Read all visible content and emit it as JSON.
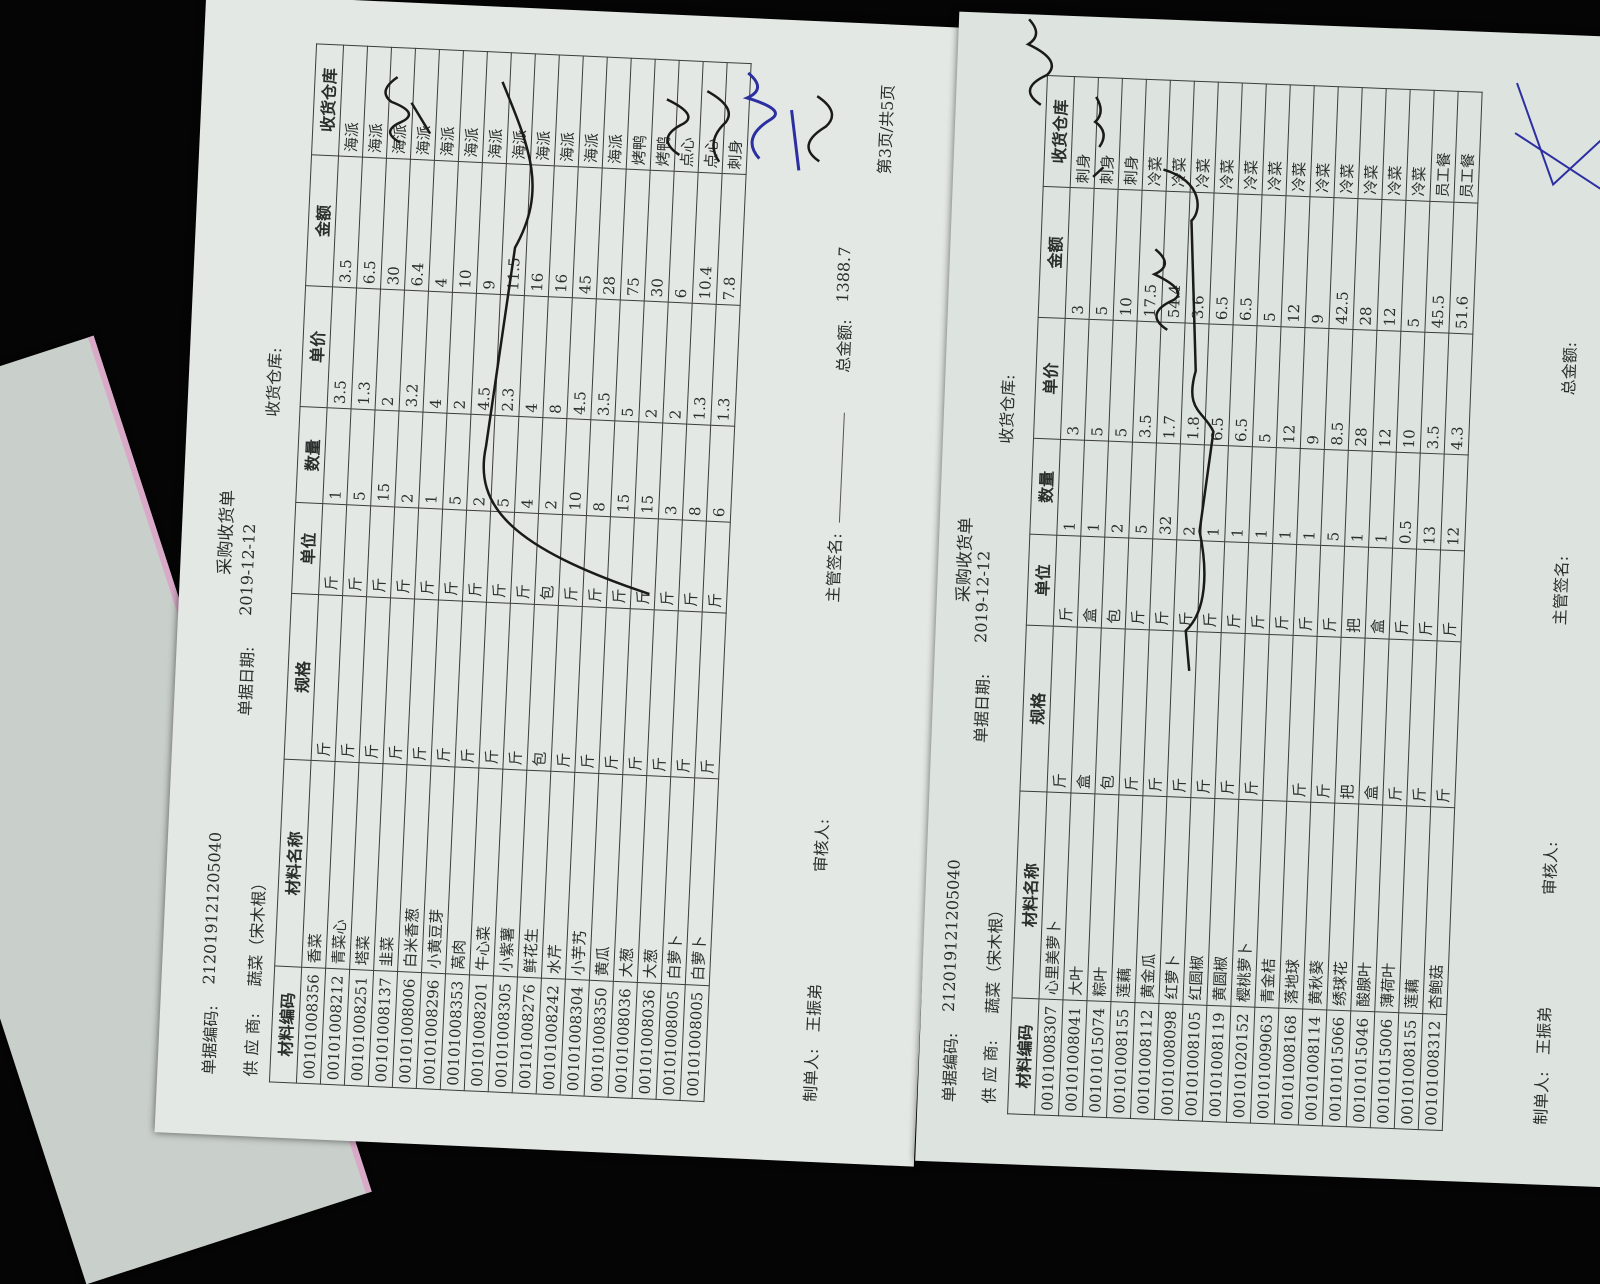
{
  "pages": [
    {
      "doc_code_label": "单据编码:",
      "doc_code": "212019121205040",
      "title": "采购收货单",
      "date_label": "单据日期:",
      "date": "2019-12-12",
      "warehouse_label": "收货仓库:",
      "supplier_label": "供 应 商:",
      "supplier": "蔬菜（宋木根）",
      "columns": [
        "材料编码",
        "材料名称",
        "规格",
        "单位",
        "数量",
        "单价",
        "金额",
        "收货仓库"
      ],
      "rows": [
        [
          "00101008356",
          "香菜",
          "斤",
          "斤",
          "1",
          "3.5",
          "3.5",
          "海派"
        ],
        [
          "00101008212",
          "青菜心",
          "斤",
          "斤",
          "5",
          "1.3",
          "6.5",
          "海派"
        ],
        [
          "00101008251",
          "塔菜",
          "斤",
          "斤",
          "15",
          "2",
          "30",
          "海派"
        ],
        [
          "00101008137",
          "韭菜",
          "斤",
          "斤",
          "2",
          "3.2",
          "6.4",
          "海派"
        ],
        [
          "00101008006",
          "白米香葱",
          "斤",
          "斤",
          "1",
          "4",
          "4",
          "海派"
        ],
        [
          "00101008296",
          "小黄豆芽",
          "斤",
          "斤",
          "5",
          "2",
          "10",
          "海派"
        ],
        [
          "00101008353",
          "莴肉",
          "斤",
          "斤",
          "2",
          "4.5",
          "9",
          "海派"
        ],
        [
          "00101008201",
          "牛心菜",
          "斤",
          "斤",
          "5",
          "2.3",
          "11.5",
          "海派"
        ],
        [
          "00101008305",
          "小紫薯",
          "斤",
          "斤",
          "4",
          "4",
          "16",
          "海派"
        ],
        [
          "00101008276",
          "鲜花生",
          "包",
          "包",
          "2",
          "8",
          "16",
          "海派"
        ],
        [
          "00101008242",
          "水芹",
          "斤",
          "斤",
          "10",
          "4.5",
          "45",
          "海派"
        ],
        [
          "00101008304",
          "小芋艿",
          "斤",
          "斤",
          "8",
          "3.5",
          "28",
          "海派"
        ],
        [
          "00101008350",
          "黄瓜",
          "斤",
          "斤",
          "15",
          "5",
          "75",
          "烤鸭"
        ],
        [
          "00101008036",
          "大葱",
          "斤",
          "斤",
          "15",
          "2",
          "30",
          "烤鸭"
        ],
        [
          "00101008036",
          "大葱",
          "斤",
          "斤",
          "3",
          "2",
          "6",
          "点心"
        ],
        [
          "00101008005",
          "白萝卜",
          "斤",
          "斤",
          "8",
          "1.3",
          "10.4",
          "点心"
        ],
        [
          "00101008005",
          "白萝卜",
          "斤",
          "斤",
          "6",
          "1.3",
          "7.8",
          "刺身"
        ]
      ],
      "maker_label": "制单人:",
      "maker": "王振弟",
      "reviewer_label": "审核人:",
      "supervisor_label": "主管签名:",
      "total_label": "总金额:",
      "total": "1388.7",
      "page_info": "第3页/共5页"
    },
    {
      "doc_code_label": "单据编码:",
      "doc_code": "212019121205040",
      "title": "采购收货单",
      "date_label": "单据日期:",
      "date": "2019-12-12",
      "warehouse_label": "收货仓库:",
      "supplier_label": "供 应 商:",
      "supplier": "蔬菜（宋木根）",
      "columns": [
        "材料编码",
        "材料名称",
        "规格",
        "单位",
        "数量",
        "单价",
        "金额",
        "收货仓库"
      ],
      "rows": [
        [
          "00101008307",
          "心里美萝卜",
          "斤",
          "斤",
          "1",
          "3",
          "3",
          "刺身"
        ],
        [
          "00101008041",
          "大叶",
          "盒",
          "盒",
          "1",
          "5",
          "5",
          "刺身"
        ],
        [
          "00101015074",
          "粽叶",
          "包",
          "包",
          "2",
          "5",
          "10",
          "刺身"
        ],
        [
          "00101008155",
          "莲藕",
          "斤",
          "斤",
          "5",
          "3.5",
          "17.5",
          "冷菜"
        ],
        [
          "00101008112",
          "黄金瓜",
          "斤",
          "斤",
          "32",
          "1.7",
          "54.4",
          "冷菜"
        ],
        [
          "00101008098",
          "红萝卜",
          "斤",
          "斤",
          "2",
          "1.8",
          "3.6",
          "冷菜"
        ],
        [
          "00101008105",
          "红圆椒",
          "斤",
          "斤",
          "1",
          "6.5",
          "6.5",
          "冷菜"
        ],
        [
          "00101008119",
          "黄圆椒",
          "斤",
          "斤",
          "1",
          "6.5",
          "6.5",
          "冷菜"
        ],
        [
          "00101020152",
          "樱桃萝卜",
          "斤",
          "斤",
          "1",
          "5",
          "5",
          "冷菜"
        ],
        [
          "00101009063",
          "青金桔",
          "",
          "斤",
          "1",
          "12",
          "12",
          "冷菜"
        ],
        [
          "00101008168",
          "落地球",
          "斤",
          "斤",
          "1",
          "9",
          "9",
          "冷菜"
        ],
        [
          "00101008114",
          "黄秋葵",
          "斤",
          "斤",
          "5",
          "8.5",
          "42.5",
          "冷菜"
        ],
        [
          "00101015066",
          "绣球花",
          "把",
          "把",
          "1",
          "28",
          "28",
          "冷菜"
        ],
        [
          "00101015046",
          "酸腺叶",
          "盒",
          "盒",
          "1",
          "12",
          "12",
          "冷菜"
        ],
        [
          "00101015006",
          "薄荷叶",
          "斤",
          "斤",
          "0.5",
          "10",
          "5",
          "冷菜"
        ],
        [
          "00101008155",
          "莲藕",
          "斤",
          "斤",
          "13",
          "3.5",
          "45.5",
          "员工餐"
        ],
        [
          "00101008312",
          "杏鲍菇",
          "斤",
          "斤",
          "12",
          "4.3",
          "51.6",
          "员工餐"
        ]
      ],
      "maker_label": "制单人:",
      "maker": "王振弟",
      "reviewer_label": "审核人:",
      "supervisor_label": "主管签名:",
      "total_label": "总金额:"
    }
  ],
  "colors": {
    "background": "#050505",
    "paper": "#e3e8e5",
    "ink_black": "#1a1a1a",
    "ink_blue": "#2b2fa0"
  }
}
